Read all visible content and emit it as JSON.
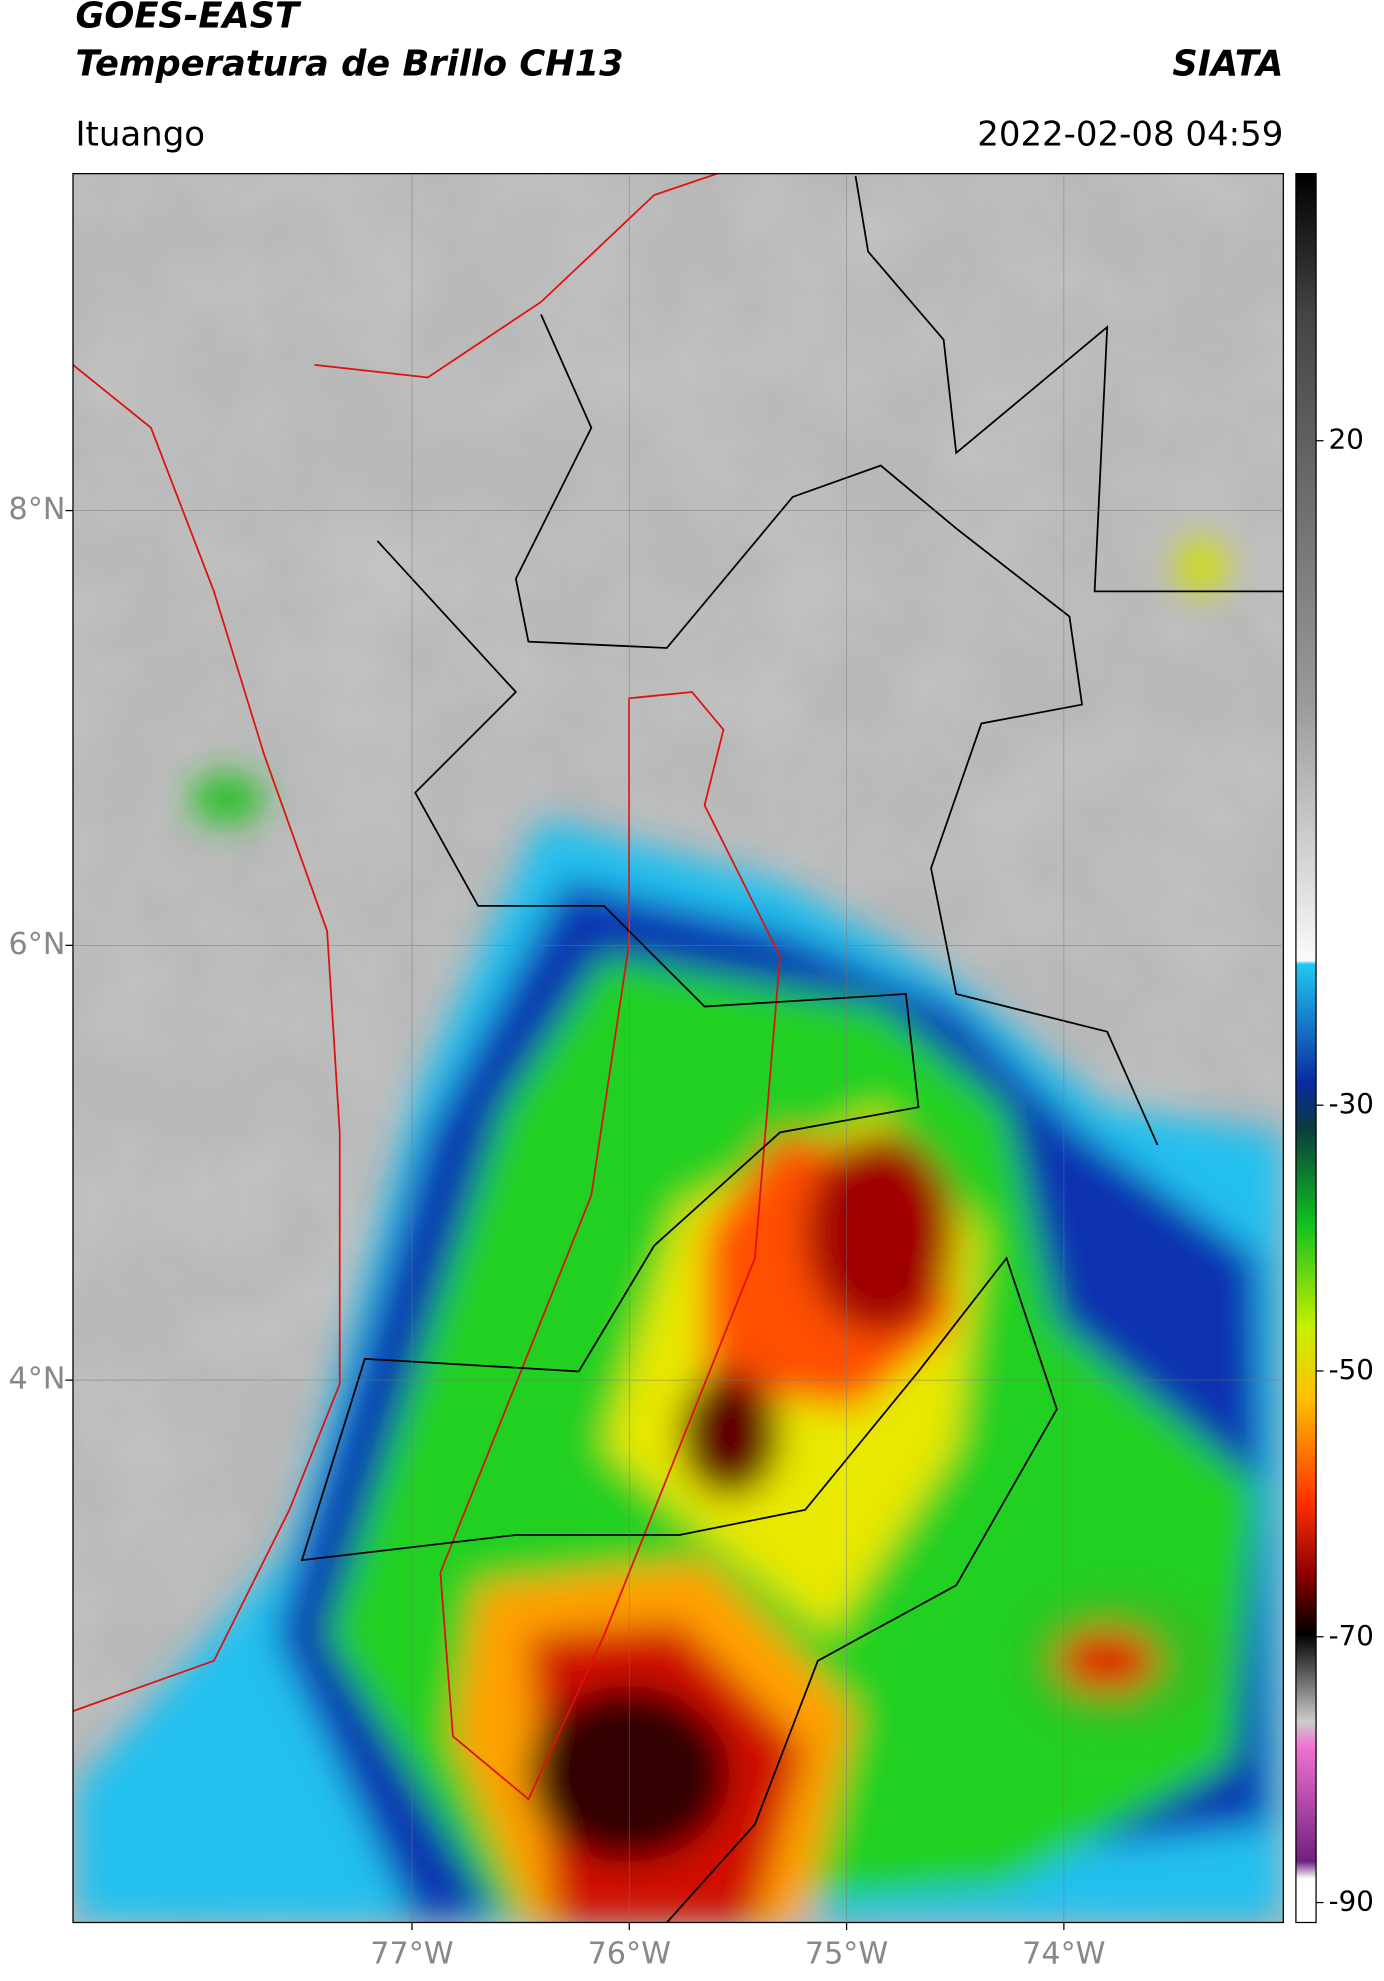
{
  "header": {
    "title_line1": "GOES-EAST",
    "title_line2": "Temperatura de Brillo CH13",
    "agency": "SIATA",
    "region": "Ituango",
    "datetime": "2022-02-08 04:59"
  },
  "map": {
    "xlim": [
      -78.56,
      -72.99
    ],
    "ylim": [
      1.505,
      9.55
    ],
    "xticks": [
      {
        "value": -77,
        "label": "77°W"
      },
      {
        "value": -76,
        "label": "76°W"
      },
      {
        "value": -75,
        "label": "75°W"
      },
      {
        "value": -74,
        "label": "74°W"
      }
    ],
    "yticks": [
      {
        "value": 8,
        "label": "8°N"
      },
      {
        "value": 6,
        "label": "6°N"
      },
      {
        "value": 4,
        "label": "4°N"
      }
    ]
  },
  "colorbar": {
    "ylim": [
      -91.5,
      40.1
    ],
    "yticks": [
      20,
      -30,
      -50,
      -70,
      -90
    ]
  }
}
